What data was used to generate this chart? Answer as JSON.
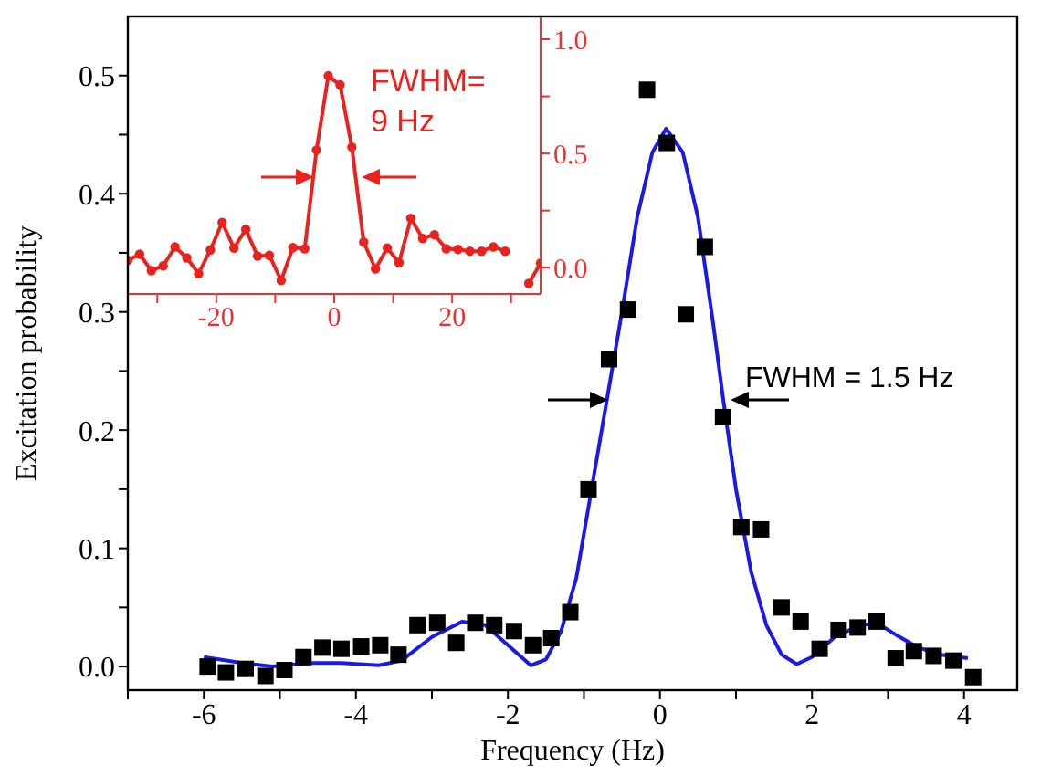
{
  "chart_data": [
    {
      "type": "scatter",
      "xlabel": "Frequency (Hz)",
      "ylabel": "Excitation probability",
      "xlim": [
        -7,
        4.7
      ],
      "xticks": [
        {
          "value": -7,
          "label": null
        },
        -6,
        {
          "value": -5,
          "label": null
        },
        -4,
        {
          "value": -3,
          "label": null
        },
        -2,
        {
          "value": -1,
          "label": null
        },
        0,
        {
          "value": 1,
          "label": null
        },
        2,
        {
          "value": 3,
          "label": null
        },
        4
      ],
      "ylim": [
        -0.02,
        0.55
      ],
      "yticks": [
        {
          "value": 0,
          "label": "0.0"
        },
        {
          "value": 0.05,
          "label": null
        },
        {
          "value": 0.1,
          "label": "0.1"
        },
        {
          "value": 0.15,
          "label": null
        },
        {
          "value": 0.2,
          "label": "0.2"
        },
        {
          "value": 0.25,
          "label": null
        },
        {
          "value": 0.3,
          "label": "0.3"
        },
        {
          "value": 0.35,
          "label": null
        },
        {
          "value": 0.4,
          "label": "0.4"
        },
        {
          "value": 0.45,
          "label": null
        },
        {
          "value": 0.5,
          "label": "0.5"
        }
      ],
      "annotations": [
        "FWHM = 1.5 Hz"
      ],
      "series": [
        {
          "type": "scatter",
          "color": "#000000",
          "marker": "square",
          "x": [
            -5.95,
            -5.71,
            -5.45,
            -5.19,
            -4.94,
            -4.69,
            -4.44,
            -4.19,
            -3.93,
            -3.68,
            -3.44,
            -3.19,
            -2.93,
            -2.68,
            -2.43,
            -2.18,
            -1.92,
            -1.67,
            -1.43,
            -1.18,
            -0.94,
            -0.67,
            -0.42,
            -0.17,
            0.09,
            0.34,
            0.59,
            0.83,
            1.07,
            1.33,
            1.6,
            1.85,
            2.1,
            2.35,
            2.6,
            2.85,
            3.1,
            3.34,
            3.6,
            3.86,
            4.12
          ],
          "values": [
            0.0,
            -0.005,
            -0.002,
            -0.008,
            -0.003,
            0.008,
            0.016,
            0.015,
            0.017,
            0.018,
            0.01,
            0.035,
            0.037,
            0.02,
            0.037,
            0.035,
            0.03,
            0.018,
            0.024,
            0.046,
            0.15,
            0.26,
            0.302,
            0.488,
            0.443,
            0.298,
            0.355,
            0.211,
            0.118,
            0.116,
            0.05,
            0.038,
            0.015,
            0.031,
            0.033,
            0.038,
            0.007,
            0.013,
            0.009,
            0.005,
            -0.009
          ]
        },
        {
          "type": "line",
          "color": "#1a1ae6",
          "marker": "none",
          "x": [
            -6,
            -5.5,
            -5.1,
            -4.6,
            -4.2,
            -3.7,
            -3.4,
            -3.0,
            -2.6,
            -2.3,
            -2.0,
            -1.7,
            -1.5,
            -1.3,
            -1.1,
            -0.9,
            -0.7,
            -0.5,
            -0.3,
            -0.1,
            0.08,
            0.3,
            0.5,
            0.7,
            0.83,
            1.0,
            1.2,
            1.4,
            1.6,
            1.8,
            2.0,
            2.3,
            2.6,
            2.85,
            3.1,
            3.4,
            3.7,
            4.05
          ],
          "values": [
            0.008,
            0.003,
            0.0,
            0.003,
            0.003,
            0.001,
            0.005,
            0.025,
            0.038,
            0.035,
            0.018,
            0.001,
            0.006,
            0.03,
            0.075,
            0.15,
            0.225,
            0.3,
            0.38,
            0.435,
            0.455,
            0.435,
            0.38,
            0.29,
            0.227,
            0.15,
            0.08,
            0.035,
            0.01,
            0.002,
            0.008,
            0.025,
            0.034,
            0.037,
            0.027,
            0.016,
            0.01,
            0.007
          ]
        }
      ]
    },
    {
      "type": "line",
      "xlim": [
        -35,
        35
      ],
      "xticks": [
        {
          "value": -30,
          "label": null
        },
        -20,
        {
          "value": -10,
          "label": null
        },
        0,
        {
          "value": 10,
          "label": null
        },
        20,
        {
          "value": 30,
          "label": null
        }
      ],
      "ylim": [
        -0.115,
        1.1
      ],
      "yticks": [
        {
          "value": 0,
          "label": "0.0"
        },
        {
          "value": 0.25,
          "label": null
        },
        {
          "value": 0.5,
          "label": "0.5"
        },
        {
          "value": 0.75,
          "label": null
        },
        {
          "value": 1,
          "label": "1.0"
        }
      ],
      "annotations": [
        "FWHM=\n9 Hz"
      ],
      "marker": "circle",
      "x": [
        -35,
        -33,
        -31,
        -29,
        -27,
        -25,
        -23,
        -21,
        -19,
        -17,
        -15,
        -13,
        -11,
        -9,
        -7,
        -5,
        -3,
        -1,
        1,
        3,
        5,
        7,
        9,
        11,
        13,
        15,
        17,
        19,
        21,
        23,
        25,
        27,
        29,
        31,
        33,
        35
      ],
      "series": [
        {
          "color": "#e8231e",
          "values": [
            0.032,
            0.059,
            -0.013,
            0.008,
            0.091,
            0.043,
            -0.026,
            0.078,
            0.198,
            0.086,
            0.168,
            0.051,
            0.054,
            -0.056,
            0.088,
            0.083,
            0.515,
            0.84,
            0.8,
            0.528,
            0.112,
            -0.005,
            0.086,
            0.022,
            0.216,
            0.128,
            0.144,
            0.083,
            0.08,
            0.072,
            0.072,
            0.091,
            0.072,
            null,
            -0.069,
            0.02
          ]
        }
      ]
    }
  ]
}
